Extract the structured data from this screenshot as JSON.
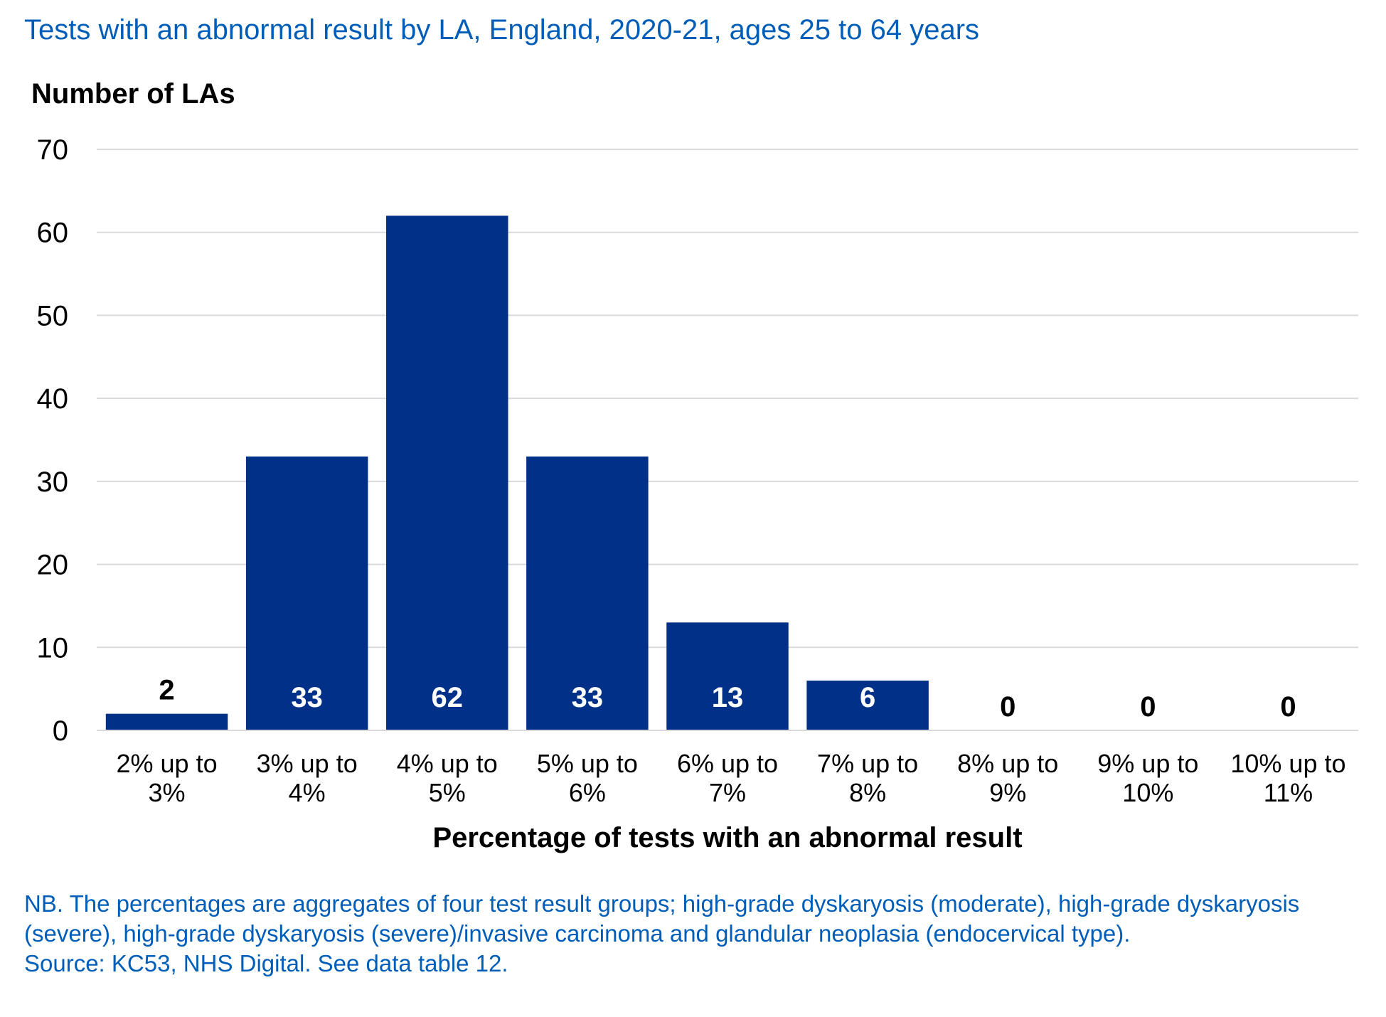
{
  "title": "Tests with an abnormal result by LA, England, 2020-21, ages 25 to 64 years",
  "chart_data": {
    "type": "bar",
    "title": "Tests with an abnormal result by LA, England, 2020-21, ages 25 to 64 years",
    "ylabel": "Number of LAs",
    "xlabel": "Percentage of tests with an abnormal result",
    "categories": [
      [
        "2% up to",
        "3%"
      ],
      [
        "3% up to",
        "4%"
      ],
      [
        "4% up to",
        "5%"
      ],
      [
        "5% up to",
        "6%"
      ],
      [
        "6% up to",
        "7%"
      ],
      [
        "7% up to",
        "8%"
      ],
      [
        "8% up to",
        "9%"
      ],
      [
        "9% up to",
        "10%"
      ],
      [
        "10% up to",
        "11%"
      ]
    ],
    "values": [
      2,
      33,
      62,
      33,
      13,
      6,
      0,
      0,
      0
    ],
    "ylim": [
      0,
      70
    ],
    "yticks": [
      0,
      10,
      20,
      30,
      40,
      50,
      60,
      70
    ],
    "grid": true,
    "bar_color": "#003087",
    "gridline_color": "#d9d9d9"
  },
  "notes": {
    "nb": "NB. The percentages are aggregates of four test result groups; high-grade dyskaryosis (moderate), high-grade dyskaryosis (severe), high-grade dyskaryosis (severe)/invasive carcinoma and glandular neoplasia (endocervical type).",
    "source": "Source: KC53, NHS Digital. See data table 12."
  }
}
